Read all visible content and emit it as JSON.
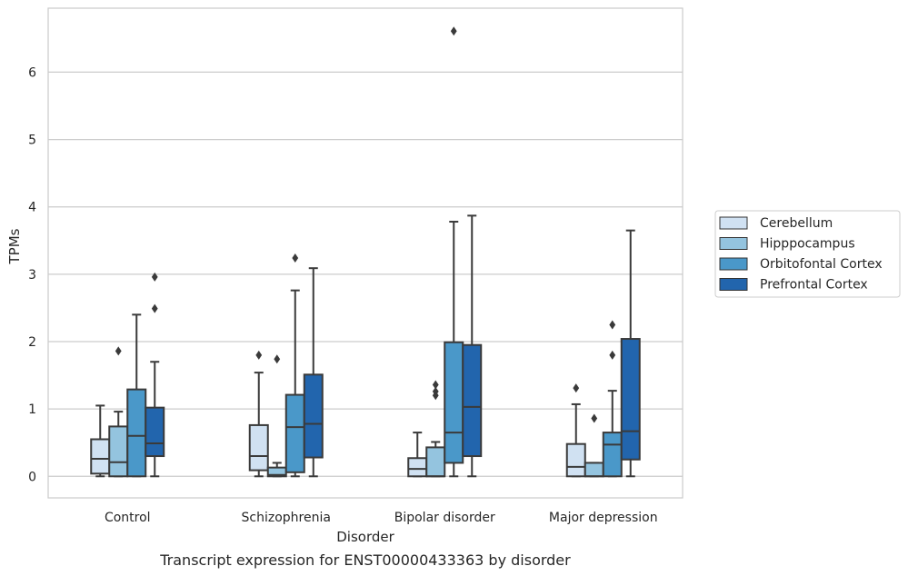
{
  "chart_data": {
    "type": "box",
    "caption": "Transcript expression for ENST00000433363 by disorder",
    "xlabel": "Disorder",
    "ylabel": "TPMs",
    "ylim": [
      -0.32,
      6.95
    ],
    "yticks": [
      0,
      1,
      2,
      3,
      4,
      5,
      6
    ],
    "grid": true,
    "legend_placement": "right",
    "categories": [
      "Control",
      "Schizophrenia",
      "Bipolar disorder",
      "Major depression"
    ],
    "series": [
      {
        "name": "Cerebellum",
        "color": "#d0e1f2",
        "boxes": [
          {
            "whislo": 0.0,
            "q1": 0.04,
            "med": 0.26,
            "q3": 0.55,
            "whishi": 1.05,
            "fliers": []
          },
          {
            "whislo": 0.0,
            "q1": 0.09,
            "med": 0.3,
            "q3": 0.76,
            "whishi": 1.54,
            "fliers": [
              1.8
            ]
          },
          {
            "whislo": 0.0,
            "q1": 0.0,
            "med": 0.11,
            "q3": 0.27,
            "whishi": 0.65,
            "fliers": []
          },
          {
            "whislo": 0.0,
            "q1": 0.0,
            "med": 0.14,
            "q3": 0.48,
            "whishi": 1.07,
            "fliers": [
              1.31
            ]
          }
        ]
      },
      {
        "name": "Hipppocampus",
        "color": "#94c4df",
        "boxes": [
          {
            "whislo": 0.0,
            "q1": 0.0,
            "med": 0.21,
            "q3": 0.74,
            "whishi": 0.96,
            "fliers": [
              1.86
            ]
          },
          {
            "whislo": 0.0,
            "q1": 0.0,
            "med": 0.02,
            "q3": 0.13,
            "whishi": 0.2,
            "fliers": [
              1.74
            ]
          },
          {
            "whislo": 0.0,
            "q1": 0.0,
            "med": 0.0,
            "q3": 0.43,
            "whishi": 0.51,
            "fliers": [
              1.2,
              1.26,
              1.36
            ]
          },
          {
            "whislo": 0.0,
            "q1": 0.0,
            "med": 0.0,
            "q3": 0.2,
            "whishi": 0.2,
            "fliers": [
              0.86
            ]
          }
        ]
      },
      {
        "name": "Orbitofontal Cortex",
        "color": "#4a98c9",
        "boxes": [
          {
            "whislo": 0.0,
            "q1": 0.0,
            "med": 0.6,
            "q3": 1.29,
            "whishi": 2.4,
            "fliers": []
          },
          {
            "whislo": 0.0,
            "q1": 0.06,
            "med": 0.73,
            "q3": 1.21,
            "whishi": 2.76,
            "fliers": [
              3.24
            ]
          },
          {
            "whislo": 0.0,
            "q1": 0.2,
            "med": 0.65,
            "q3": 1.99,
            "whishi": 3.78,
            "fliers": [
              6.61
            ]
          },
          {
            "whislo": 0.0,
            "q1": 0.0,
            "med": 0.47,
            "q3": 0.65,
            "whishi": 1.27,
            "fliers": [
              1.8,
              2.25
            ]
          }
        ]
      },
      {
        "name": "Prefrontal Cortex",
        "color": "#2265ad",
        "boxes": [
          {
            "whislo": 0.0,
            "q1": 0.3,
            "med": 0.49,
            "q3": 1.02,
            "whishi": 1.7,
            "fliers": [
              2.49,
              2.96
            ]
          },
          {
            "whislo": 0.0,
            "q1": 0.28,
            "med": 0.78,
            "q3": 1.51,
            "whishi": 3.09,
            "fliers": []
          },
          {
            "whislo": 0.0,
            "q1": 0.3,
            "med": 1.03,
            "q3": 1.95,
            "whishi": 3.87,
            "fliers": []
          },
          {
            "whislo": 0.0,
            "q1": 0.25,
            "med": 0.67,
            "q3": 2.04,
            "whishi": 3.65,
            "fliers": []
          }
        ]
      }
    ]
  }
}
